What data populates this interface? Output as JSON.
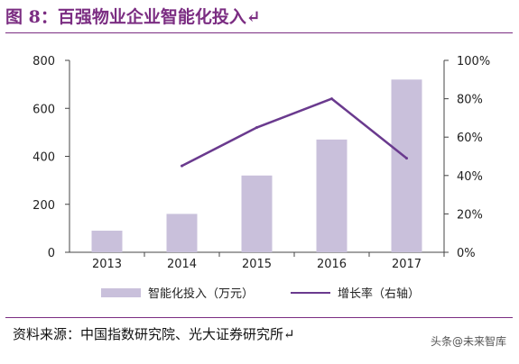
{
  "title": "图 8：百强物业企业智能化投入↵",
  "source": "资料来源：中国指数研究院、光大证券研究所↵",
  "watermark": "头条@未来智库",
  "colors": {
    "title": "#7b2d82",
    "bar": "#c9c0db",
    "line": "#6a3a8e"
  },
  "chart_data": {
    "type": "bar",
    "categories": [
      "2013",
      "2014",
      "2015",
      "2016",
      "2017"
    ],
    "series": [
      {
        "name": "智能化投入（万元）",
        "type": "bar",
        "axis": "left",
        "values": [
          90,
          160,
          320,
          470,
          720
        ]
      },
      {
        "name": "增长率（右轴）",
        "type": "line",
        "axis": "right",
        "values": [
          null,
          45,
          65,
          80,
          49
        ]
      }
    ],
    "y_left": {
      "ticks": [
        "0",
        "200",
        "400",
        "600",
        "800"
      ],
      "lim": [
        0,
        800
      ]
    },
    "y_right": {
      "ticks": [
        "0%",
        "20%",
        "40%",
        "60%",
        "80%",
        "100%"
      ],
      "lim": [
        0,
        100
      ]
    },
    "legend_position": "bottom",
    "grid": false
  }
}
